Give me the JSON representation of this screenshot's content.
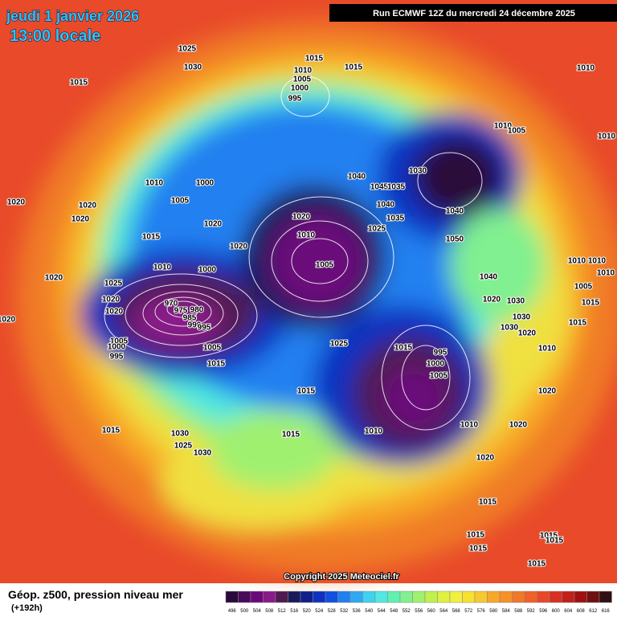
{
  "header": {
    "date": "jeudi 1 janvier 2026",
    "time": "13:00 locale",
    "run": "Run ECMWF 12Z du mercredi 24 décembre 2025"
  },
  "copyright": "Copyright 2025 Meteociel.fr",
  "footer": {
    "title": "Géop. z500, pression niveau mer",
    "lead": "(+192h)"
  },
  "legend": {
    "values": [
      496,
      500,
      504,
      508,
      512,
      516,
      520,
      524,
      528,
      532,
      536,
      540,
      544,
      548,
      552,
      556,
      560,
      564,
      568,
      572,
      576,
      580,
      584,
      588,
      592,
      596,
      600,
      604,
      608,
      612,
      616
    ],
    "colors": [
      "#2a0a3a",
      "#4a0a5a",
      "#6a0a7a",
      "#8a1a8a",
      "#501a50",
      "#1a1a5a",
      "#10208a",
      "#1030c0",
      "#1050e0",
      "#2080f0",
      "#30a8f0",
      "#40d0f0",
      "#50e8e0",
      "#60f0b0",
      "#80f090",
      "#a0f070",
      "#c0f050",
      "#e0f040",
      "#f0f040",
      "#f8e030",
      "#f8c830",
      "#f8a828",
      "#f89028",
      "#f07828",
      "#f06028",
      "#e84828",
      "#d83020",
      "#c02018",
      "#a01010",
      "#701010",
      "#301010"
    ]
  },
  "isobars": [
    "1025",
    "1030",
    "1015",
    "1015",
    "1010",
    "1015",
    "1005",
    "1000",
    "995",
    "1010",
    "1010",
    "1005",
    "1010",
    "1010",
    "1005",
    "1000",
    "1040",
    "1045",
    "1035",
    "1040",
    "1035",
    "1030",
    "1020",
    "1020",
    "1020",
    "1020",
    "1020",
    "1010",
    "1025",
    "1040",
    "1015",
    "1020",
    "1005",
    "1050",
    "1010",
    "1000",
    "1025",
    "1040",
    "1020",
    "1020",
    "970",
    "975",
    "980",
    "985",
    "990",
    "995",
    "1020",
    "1030",
    "1030",
    "1030",
    "1020",
    "1020",
    "1020",
    "1005",
    "1000",
    "995",
    "1005",
    "1025",
    "1015",
    "995",
    "1000",
    "1005",
    "1015",
    "1015",
    "1015",
    "1015",
    "1010",
    "1020",
    "1010",
    "1020",
    "1010",
    "1015",
    "1030",
    "1025",
    "1030",
    "1015",
    "1020",
    "1015",
    "1015",
    "1015",
    "1015",
    "1015",
    "1015",
    "1010",
    "1010",
    "1005",
    "1010"
  ]
}
